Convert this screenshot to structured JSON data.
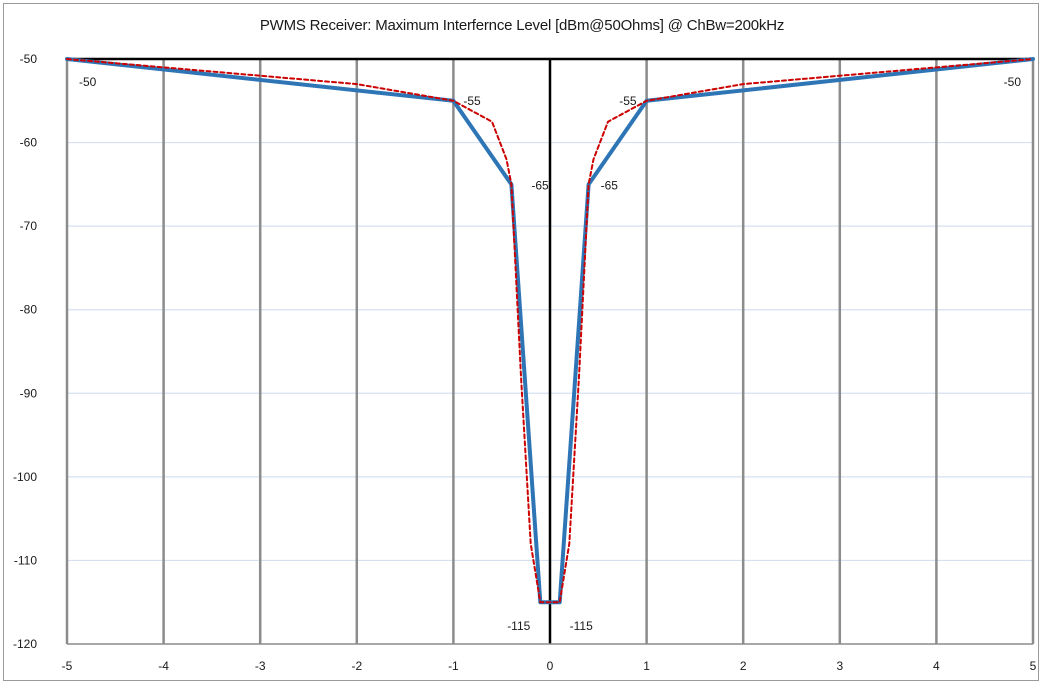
{
  "chart_data": {
    "type": "line",
    "title": "PWMS Receiver: Maximum Interfernce Level [dBm@50Ohms] @ ChBw=200kHz",
    "xlabel": "",
    "ylabel": "",
    "xlim": [
      -5,
      5
    ],
    "ylim": [
      -120,
      -50
    ],
    "x_ticks": [
      -5,
      -4,
      -3,
      -2,
      -1,
      0,
      1,
      2,
      3,
      4,
      5
    ],
    "y_ticks": [
      -50,
      -60,
      -70,
      -80,
      -90,
      -100,
      -110,
      -120
    ],
    "grid": true,
    "legend": "none",
    "series": [
      {
        "style": "solid",
        "color": "#2e75b6",
        "x": [
          -5,
          -1,
          -0.4,
          -0.1,
          0.1,
          0.4,
          1,
          5
        ],
        "y": [
          -50,
          -55,
          -65,
          -115,
          -115,
          -65,
          -55,
          -50
        ]
      },
      {
        "style": "dashed",
        "color": "#cc0000",
        "x": [
          -5,
          -2,
          -1,
          -0.6,
          -0.45,
          -0.4,
          -0.3,
          -0.2,
          -0.1,
          0.1,
          0.2,
          0.3,
          0.4,
          0.45,
          0.6,
          1,
          2,
          5
        ],
        "y": [
          -50,
          -53,
          -55,
          -57.5,
          -62,
          -65,
          -88,
          -108,
          -115,
          -115,
          -108,
          -88,
          -65,
          -62,
          -57.5,
          -55,
          -53,
          -50
        ]
      }
    ],
    "data_labels": [
      {
        "x": -5,
        "y": -50,
        "text": "-50"
      },
      {
        "x": -1,
        "y": -55,
        "text": "-55"
      },
      {
        "x": -0.4,
        "y": -65,
        "text": "-65"
      },
      {
        "x": -0.1,
        "y": -115,
        "text": "-115"
      },
      {
        "x": 0.1,
        "y": -115,
        "text": "-115"
      },
      {
        "x": 0.4,
        "y": -65,
        "text": "-65"
      },
      {
        "x": 1,
        "y": -55,
        "text": "-55"
      },
      {
        "x": 5,
        "y": -50,
        "text": "-50"
      }
    ]
  }
}
